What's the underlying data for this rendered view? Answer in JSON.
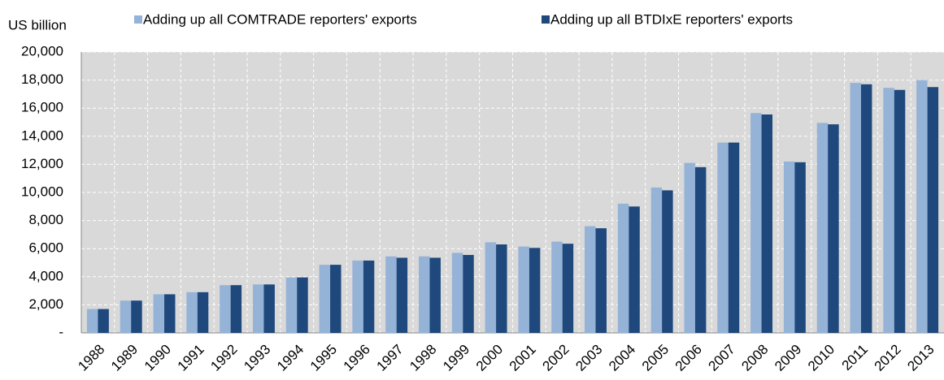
{
  "chart_data": {
    "type": "bar",
    "y_axis_label": "US billion",
    "categories": [
      "1988",
      "1989",
      "1990",
      "1991",
      "1992",
      "1993",
      "1994",
      "1995",
      "1996",
      "1997",
      "1998",
      "1999",
      "2000",
      "2001",
      "2002",
      "2003",
      "2004",
      "2005",
      "2006",
      "2007",
      "2008",
      "2009",
      "2010",
      "2011",
      "2012",
      "2013"
    ],
    "series": [
      {
        "name": "Adding up all COMTRADE reporters' exports",
        "color": "#95b3d7",
        "values": [
          1700,
          2300,
          2750,
          2900,
          3400,
          3450,
          3950,
          4850,
          5150,
          5450,
          5450,
          5700,
          6450,
          6150,
          6500,
          7600,
          9200,
          10350,
          12100,
          13550,
          15650,
          12200,
          14950,
          17800,
          17450,
          18000
        ]
      },
      {
        "name": "Adding up all BTDIxE reporters' exports",
        "color": "#1f497d",
        "values": [
          1700,
          2300,
          2750,
          2900,
          3400,
          3450,
          3950,
          4850,
          5150,
          5350,
          5350,
          5550,
          6300,
          6050,
          6350,
          7450,
          9000,
          10150,
          11800,
          13550,
          15550,
          12150,
          14850,
          17700,
          17300,
          17500
        ]
      }
    ],
    "ylim": [
      0,
      20000
    ],
    "yticks": [
      {
        "value": 0,
        "label": "-"
      },
      {
        "value": 2000,
        "label": "2,000"
      },
      {
        "value": 4000,
        "label": "4,000"
      },
      {
        "value": 6000,
        "label": "6,000"
      },
      {
        "value": 8000,
        "label": "8,000"
      },
      {
        "value": 10000,
        "label": "10,000"
      },
      {
        "value": 12000,
        "label": "12,000"
      },
      {
        "value": 14000,
        "label": "14,000"
      },
      {
        "value": 16000,
        "label": "16,000"
      },
      {
        "value": 18000,
        "label": "18,000"
      },
      {
        "value": 20000,
        "label": "20,000"
      }
    ],
    "grid": true
  }
}
